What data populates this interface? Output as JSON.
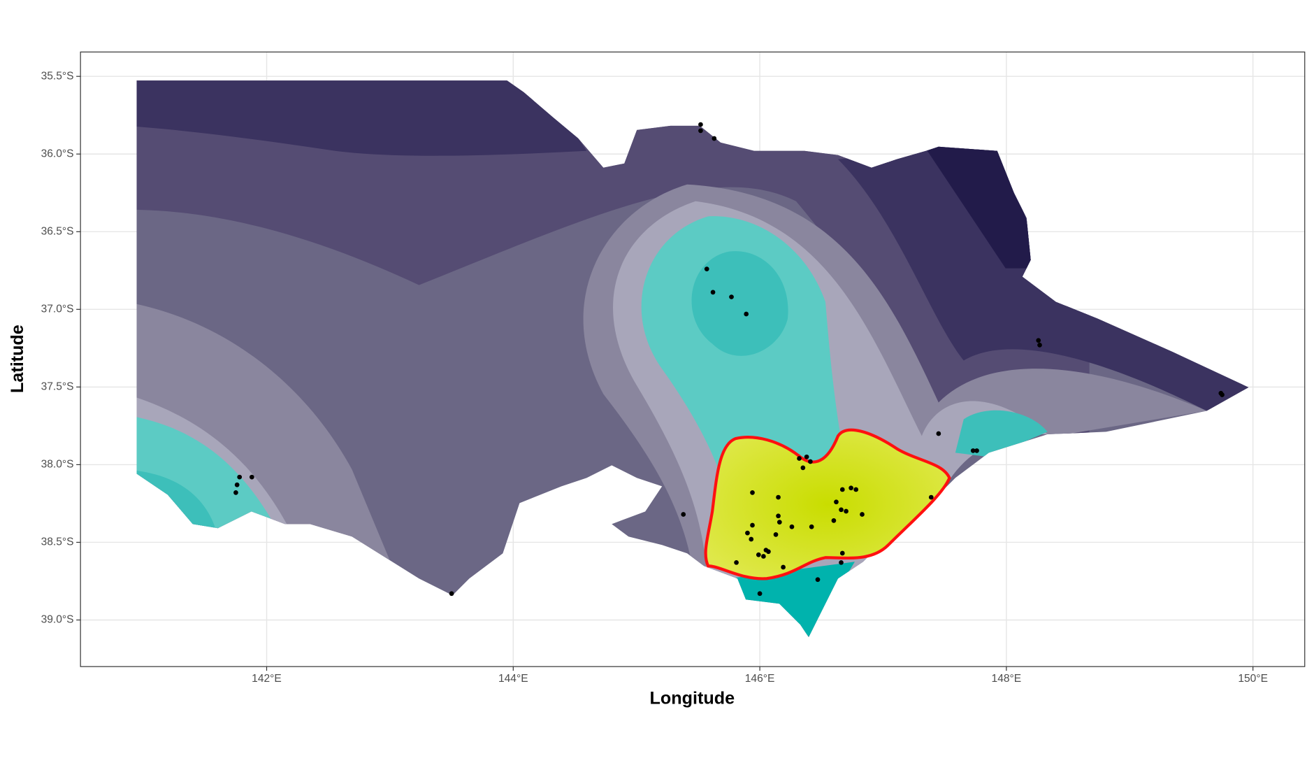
{
  "chart_data": {
    "type": "scatter",
    "x_label": "Longitude",
    "y_label": "Latitude",
    "xlim": [
      140.49,
      150.42
    ],
    "ylim": [
      -39.3,
      -35.343
    ],
    "xticks": [
      {
        "value": 142,
        "label": "142°E"
      },
      {
        "value": 144,
        "label": "144°E"
      },
      {
        "value": 146,
        "label": "146°E"
      },
      {
        "value": 148,
        "label": "148°E"
      },
      {
        "value": 150,
        "label": "150°E"
      }
    ],
    "yticks": [
      {
        "value": -35.5,
        "label": "35.5°S"
      },
      {
        "value": -36,
        "label": "36.0°S"
      },
      {
        "value": -36.5,
        "label": "36.5°S"
      },
      {
        "value": -37,
        "label": "37.0°S"
      },
      {
        "value": -37.5,
        "label": "37.5°S"
      },
      {
        "value": -38,
        "label": "38.0°S"
      },
      {
        "value": -38.5,
        "label": "38.5°S"
      },
      {
        "value": -39,
        "label": "39.0°S"
      }
    ],
    "grid": true,
    "point_color": "#000000",
    "x": [
      145.52,
      145.52,
      145.63,
      145.57,
      145.62,
      145.77,
      145.89,
      148.26,
      148.27,
      149.74,
      149.75,
      147.45,
      147.73,
      147.76,
      146.32,
      146.38,
      146.35,
      146.41,
      141.78,
      141.88,
      141.76,
      141.75,
      145.94,
      146.15,
      146.67,
      146.74,
      146.78,
      146.62,
      146.66,
      146.7,
      146.83,
      147.39,
      145.38,
      146.15,
      146.16,
      145.94,
      146.26,
      146.42,
      146.6,
      145.9,
      146.13,
      145.93,
      146.05,
      145.99,
      146.03,
      146.07,
      146.67,
      146.66,
      145.81,
      146.19,
      146.47,
      146.0,
      143.5
    ],
    "y": [
      -35.81,
      -35.85,
      -35.9,
      -36.74,
      -36.89,
      -36.92,
      -37.03,
      -37.2,
      -37.23,
      -37.54,
      -37.55,
      -37.8,
      -37.91,
      -37.91,
      -37.96,
      -37.95,
      -38.02,
      -37.98,
      -38.08,
      -38.08,
      -38.13,
      -38.18,
      -38.18,
      -38.21,
      -38.16,
      -38.15,
      -38.16,
      -38.24,
      -38.29,
      -38.3,
      -38.32,
      -38.21,
      -38.32,
      -38.33,
      -38.37,
      -38.39,
      -38.4,
      -38.4,
      -38.36,
      -38.44,
      -38.45,
      -38.48,
      -38.55,
      -38.58,
      -38.59,
      -38.56,
      -38.57,
      -38.63,
      -38.63,
      -38.66,
      -38.74,
      -38.83,
      -38.83
    ]
  }
}
